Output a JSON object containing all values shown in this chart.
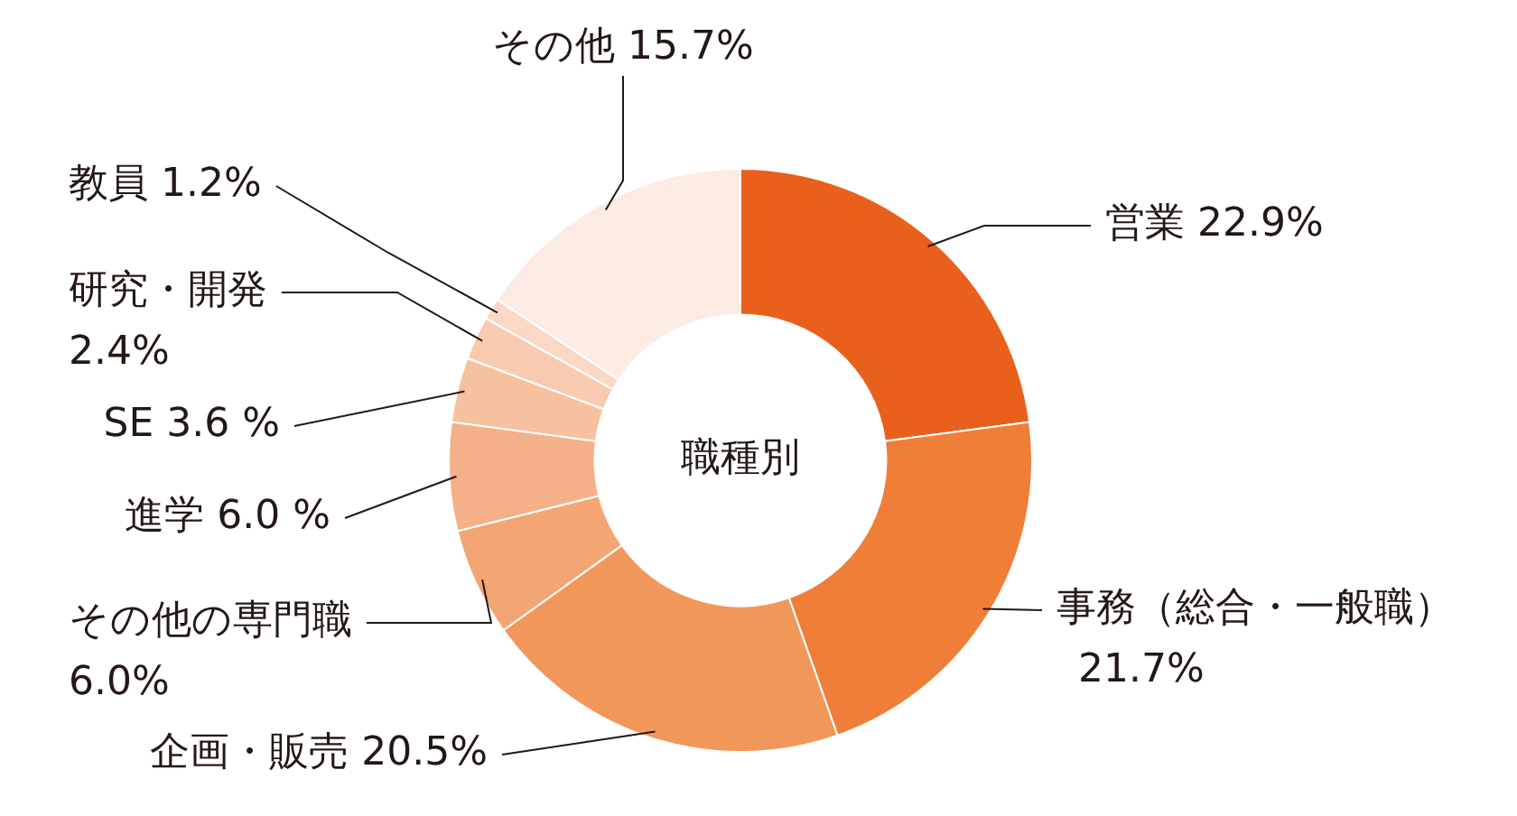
{
  "chart_data": {
    "type": "donut",
    "title": "職種別",
    "categories": [
      "営業",
      "事務（総合・一般職）",
      "企画・販売",
      "その他の専門職",
      "進学",
      "SE",
      "研究・開発",
      "教員",
      "その他"
    ],
    "values": [
      22.9,
      21.7,
      20.5,
      6.0,
      6.0,
      3.6,
      2.4,
      1.2,
      15.7
    ],
    "value_labels": [
      "22.9%",
      "21.7%",
      "20.5%",
      "6.0%",
      "6.0 %",
      "3.6 %",
      "2.4%",
      "1.2%",
      "15.7%"
    ],
    "colors": [
      "#e8601c",
      "#ef7e38",
      "#f2975a",
      "#f3a573",
      "#f4b088",
      "#f6c19f",
      "#f8cbb0",
      "#fad8c5",
      "#fcebe2"
    ],
    "legend": false
  }
}
